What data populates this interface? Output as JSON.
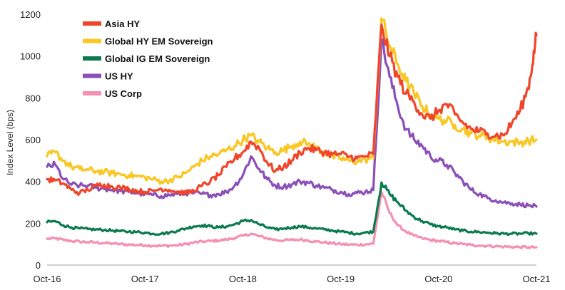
{
  "chart_data": {
    "type": "line",
    "title": "",
    "xlabel": "",
    "ylabel": "Index Level (bps)",
    "ylim": [
      0,
      1200
    ],
    "yticks": [
      0,
      200,
      400,
      600,
      800,
      1000,
      1200
    ],
    "xlim": [
      0,
      60
    ],
    "xticks": [
      {
        "value": 0,
        "label": "Oct-16"
      },
      {
        "value": 12,
        "label": "Oct-17"
      },
      {
        "value": 24,
        "label": "Oct-18"
      },
      {
        "value": 36,
        "label": "Oct-19"
      },
      {
        "value": 48,
        "label": "Oct-20"
      },
      {
        "value": 60,
        "label": "Oct-21"
      }
    ],
    "grid": false,
    "legend_position": "top-left",
    "x_unit": "months since Oct-16",
    "series": [
      {
        "name": "Asia HY",
        "color": "#f0452a",
        "points": [
          [
            0,
            410
          ],
          [
            1,
            405
          ],
          [
            2,
            390
          ],
          [
            3,
            360
          ],
          [
            4,
            345
          ],
          [
            5,
            360
          ],
          [
            6,
            380
          ],
          [
            7,
            385
          ],
          [
            8,
            375
          ],
          [
            9,
            370
          ],
          [
            10,
            365
          ],
          [
            11,
            355
          ],
          [
            12,
            350
          ],
          [
            13,
            355
          ],
          [
            14,
            365
          ],
          [
            15,
            360
          ],
          [
            16,
            350
          ],
          [
            17,
            345
          ],
          [
            18,
            355
          ],
          [
            19,
            380
          ],
          [
            20,
            400
          ],
          [
            21,
            430
          ],
          [
            22,
            470
          ],
          [
            23,
            510
          ],
          [
            24,
            540
          ],
          [
            25,
            590
          ],
          [
            26,
            560
          ],
          [
            27,
            490
          ],
          [
            28,
            450
          ],
          [
            29,
            470
          ],
          [
            30,
            500
          ],
          [
            31,
            540
          ],
          [
            32,
            560
          ],
          [
            33,
            550
          ],
          [
            34,
            540
          ],
          [
            35,
            530
          ],
          [
            36,
            530
          ],
          [
            37,
            520
          ],
          [
            38,
            510
          ],
          [
            39,
            520
          ],
          [
            40,
            530
          ],
          [
            41,
            1150
          ],
          [
            42,
            1000
          ],
          [
            43,
            900
          ],
          [
            44,
            820
          ],
          [
            45,
            780
          ],
          [
            46,
            720
          ],
          [
            47,
            700
          ],
          [
            48,
            740
          ],
          [
            49,
            770
          ],
          [
            50,
            720
          ],
          [
            51,
            680
          ],
          [
            52,
            650
          ],
          [
            53,
            640
          ],
          [
            54,
            630
          ],
          [
            55,
            620
          ],
          [
            56,
            620
          ],
          [
            57,
            680
          ],
          [
            58,
            740
          ],
          [
            59,
            850
          ],
          [
            59.5,
            960
          ],
          [
            60,
            1100
          ]
        ]
      },
      {
        "name": "Global HY EM Sovereign",
        "color": "#f9c622",
        "points": [
          [
            0,
            520
          ],
          [
            1,
            540
          ],
          [
            2,
            500
          ],
          [
            3,
            470
          ],
          [
            4,
            460
          ],
          [
            5,
            455
          ],
          [
            6,
            450
          ],
          [
            7,
            445
          ],
          [
            8,
            440
          ],
          [
            9,
            435
          ],
          [
            10,
            430
          ],
          [
            11,
            425
          ],
          [
            12,
            420
          ],
          [
            13,
            410
          ],
          [
            14,
            400
          ],
          [
            15,
            405
          ],
          [
            16,
            420
          ],
          [
            17,
            440
          ],
          [
            18,
            470
          ],
          [
            19,
            500
          ],
          [
            20,
            520
          ],
          [
            21,
            530
          ],
          [
            22,
            550
          ],
          [
            23,
            570
          ],
          [
            24,
            600
          ],
          [
            25,
            620
          ],
          [
            26,
            590
          ],
          [
            27,
            560
          ],
          [
            28,
            540
          ],
          [
            29,
            550
          ],
          [
            30,
            570
          ],
          [
            31,
            590
          ],
          [
            32,
            580
          ],
          [
            33,
            560
          ],
          [
            34,
            540
          ],
          [
            35,
            520
          ],
          [
            36,
            510
          ],
          [
            37,
            500
          ],
          [
            38,
            495
          ],
          [
            39,
            505
          ],
          [
            40,
            510
          ],
          [
            41,
            1180
          ],
          [
            42,
            1050
          ],
          [
            43,
            960
          ],
          [
            44,
            880
          ],
          [
            45,
            820
          ],
          [
            46,
            760
          ],
          [
            47,
            720
          ],
          [
            48,
            700
          ],
          [
            49,
            690
          ],
          [
            50,
            670
          ],
          [
            51,
            650
          ],
          [
            52,
            630
          ],
          [
            53,
            620
          ],
          [
            54,
            610
          ],
          [
            55,
            600
          ],
          [
            56,
            590
          ],
          [
            57,
            590
          ],
          [
            58,
            585
          ],
          [
            59,
            595
          ],
          [
            60,
            600
          ]
        ]
      },
      {
        "name": "Global IG EM Sovereign",
        "color": "#0b7a4e",
        "points": [
          [
            0,
            205
          ],
          [
            1,
            210
          ],
          [
            2,
            190
          ],
          [
            3,
            180
          ],
          [
            4,
            175
          ],
          [
            5,
            172
          ],
          [
            6,
            170
          ],
          [
            7,
            168
          ],
          [
            8,
            165
          ],
          [
            9,
            162
          ],
          [
            10,
            160
          ],
          [
            11,
            158
          ],
          [
            12,
            155
          ],
          [
            13,
            150
          ],
          [
            14,
            150
          ],
          [
            15,
            155
          ],
          [
            16,
            165
          ],
          [
            17,
            175
          ],
          [
            18,
            185
          ],
          [
            19,
            190
          ],
          [
            20,
            185
          ],
          [
            21,
            180
          ],
          [
            22,
            185
          ],
          [
            23,
            195
          ],
          [
            24,
            210
          ],
          [
            25,
            215
          ],
          [
            26,
            195
          ],
          [
            27,
            180
          ],
          [
            28,
            170
          ],
          [
            29,
            175
          ],
          [
            30,
            180
          ],
          [
            31,
            185
          ],
          [
            32,
            180
          ],
          [
            33,
            175
          ],
          [
            34,
            170
          ],
          [
            35,
            165
          ],
          [
            36,
            160
          ],
          [
            37,
            155
          ],
          [
            38,
            150
          ],
          [
            39,
            155
          ],
          [
            40,
            160
          ],
          [
            41,
            395
          ],
          [
            42,
            340
          ],
          [
            43,
            300
          ],
          [
            44,
            260
          ],
          [
            45,
            230
          ],
          [
            46,
            210
          ],
          [
            47,
            195
          ],
          [
            48,
            185
          ],
          [
            49,
            180
          ],
          [
            50,
            170
          ],
          [
            51,
            165
          ],
          [
            52,
            160
          ],
          [
            53,
            158
          ],
          [
            54,
            155
          ],
          [
            55,
            152
          ],
          [
            56,
            150
          ],
          [
            57,
            150
          ],
          [
            58,
            150
          ],
          [
            59,
            152
          ],
          [
            60,
            150
          ]
        ]
      },
      {
        "name": "US HY",
        "color": "#8a4fb8",
        "points": [
          [
            0,
            470
          ],
          [
            1,
            480
          ],
          [
            2,
            410
          ],
          [
            3,
            385
          ],
          [
            4,
            380
          ],
          [
            5,
            380
          ],
          [
            6,
            370
          ],
          [
            7,
            365
          ],
          [
            8,
            360
          ],
          [
            9,
            355
          ],
          [
            10,
            350
          ],
          [
            11,
            345
          ],
          [
            12,
            340
          ],
          [
            13,
            335
          ],
          [
            14,
            330
          ],
          [
            15,
            335
          ],
          [
            16,
            340
          ],
          [
            17,
            345
          ],
          [
            18,
            345
          ],
          [
            19,
            340
          ],
          [
            20,
            335
          ],
          [
            21,
            340
          ],
          [
            22,
            350
          ],
          [
            23,
            380
          ],
          [
            24,
            430
          ],
          [
            25,
            520
          ],
          [
            26,
            460
          ],
          [
            27,
            410
          ],
          [
            28,
            380
          ],
          [
            29,
            375
          ],
          [
            30,
            385
          ],
          [
            31,
            400
          ],
          [
            32,
            395
          ],
          [
            33,
            380
          ],
          [
            34,
            370
          ],
          [
            35,
            360
          ],
          [
            36,
            350
          ],
          [
            37,
            340
          ],
          [
            38,
            345
          ],
          [
            39,
            350
          ],
          [
            40,
            360
          ],
          [
            41,
            1080
          ],
          [
            42,
            900
          ],
          [
            43,
            760
          ],
          [
            44,
            650
          ],
          [
            45,
            600
          ],
          [
            46,
            570
          ],
          [
            47,
            520
          ],
          [
            48,
            500
          ],
          [
            49,
            480
          ],
          [
            50,
            440
          ],
          [
            51,
            400
          ],
          [
            52,
            360
          ],
          [
            53,
            340
          ],
          [
            54,
            320
          ],
          [
            55,
            310
          ],
          [
            56,
            300
          ],
          [
            57,
            295
          ],
          [
            58,
            290
          ],
          [
            59,
            285
          ],
          [
            60,
            280
          ]
        ]
      },
      {
        "name": "US Corp",
        "color": "#f590b0",
        "points": [
          [
            0,
            125
          ],
          [
            1,
            128
          ],
          [
            2,
            120
          ],
          [
            3,
            115
          ],
          [
            4,
            112
          ],
          [
            5,
            110
          ],
          [
            6,
            108
          ],
          [
            7,
            105
          ],
          [
            8,
            103
          ],
          [
            9,
            100
          ],
          [
            10,
            98
          ],
          [
            11,
            96
          ],
          [
            12,
            95
          ],
          [
            13,
            93
          ],
          [
            14,
            92
          ],
          [
            15,
            93
          ],
          [
            16,
            95
          ],
          [
            17,
            100
          ],
          [
            18,
            108
          ],
          [
            19,
            112
          ],
          [
            20,
            115
          ],
          [
            21,
            118
          ],
          [
            22,
            122
          ],
          [
            23,
            130
          ],
          [
            24,
            140
          ],
          [
            25,
            150
          ],
          [
            26,
            138
          ],
          [
            27,
            128
          ],
          [
            28,
            120
          ],
          [
            29,
            118
          ],
          [
            30,
            120
          ],
          [
            31,
            122
          ],
          [
            32,
            118
          ],
          [
            33,
            112
          ],
          [
            34,
            108
          ],
          [
            35,
            104
          ],
          [
            36,
            100
          ],
          [
            37,
            98
          ],
          [
            38,
            97
          ],
          [
            39,
            99
          ],
          [
            40,
            102
          ],
          [
            41,
            350
          ],
          [
            42,
            250
          ],
          [
            43,
            190
          ],
          [
            44,
            160
          ],
          [
            45,
            140
          ],
          [
            46,
            128
          ],
          [
            47,
            120
          ],
          [
            48,
            115
          ],
          [
            49,
            110
          ],
          [
            50,
            104
          ],
          [
            51,
            100
          ],
          [
            52,
            96
          ],
          [
            53,
            94
          ],
          [
            54,
            92
          ],
          [
            55,
            90
          ],
          [
            56,
            88
          ],
          [
            57,
            87
          ],
          [
            58,
            86
          ],
          [
            59,
            85
          ],
          [
            60,
            85
          ]
        ]
      }
    ]
  }
}
